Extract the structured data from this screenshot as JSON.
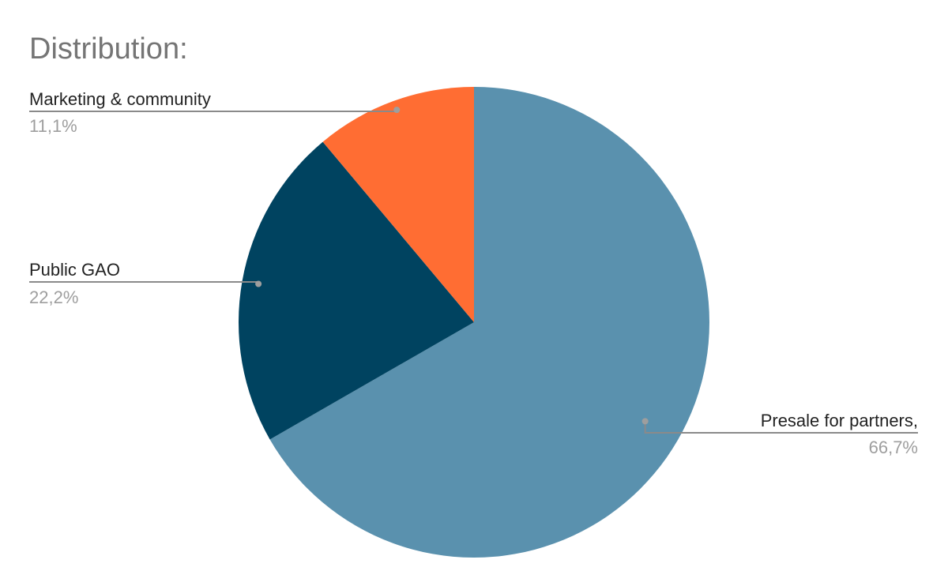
{
  "chart_data": {
    "type": "pie",
    "title": "Distribution:",
    "slices": [
      {
        "label": "Presale for partners,",
        "value": 66.7,
        "value_label": "66,7%",
        "color": "#5a91ae"
      },
      {
        "label": "Public GAO",
        "value": 22.2,
        "value_label": "22,2%",
        "color": "#004360"
      },
      {
        "label": "Marketing & community",
        "value": 11.1,
        "value_label": "11,1%",
        "color": "#ff6d33"
      }
    ],
    "start": "12 o'clock",
    "direction": "clockwise",
    "labels": "outside with leader lines",
    "legend": "none"
  }
}
